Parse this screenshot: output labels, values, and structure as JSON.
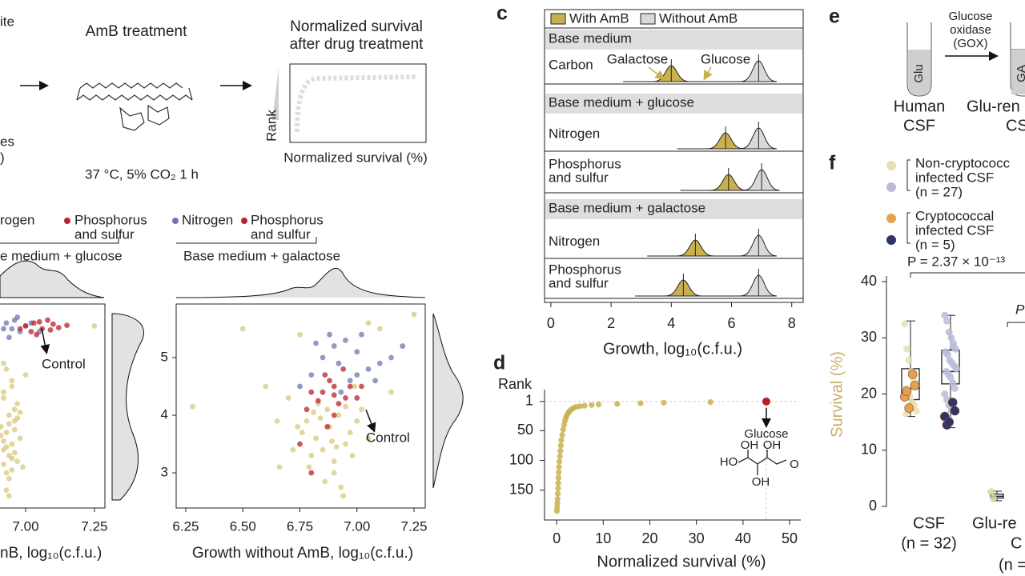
{
  "panel_labels": [
    "c",
    "d",
    "e",
    "f"
  ],
  "schematic": {
    "fragments": [
      "ite",
      "es",
      ")"
    ],
    "treatment": "AmB treatment",
    "conditions": "37 °C, 5% CO₂ 1 h",
    "readout": [
      "Normalized survival",
      "after drug treatment"
    ],
    "readout_y": "Rank",
    "readout_x": "Normalized survival (%)"
  },
  "panel_e": {
    "reagent": [
      "Glucose",
      "oxidase",
      "(GOX)"
    ],
    "tubes": [
      "Glu",
      "GA"
    ],
    "samples": [
      [
        "Human",
        "CSF"
      ],
      [
        "Glu-ren",
        "CS"
      ]
    ]
  },
  "chart_data": [
    {
      "type": "scatter",
      "x_label": "nB, log₁₀(c.f.u.)",
      "group_label": "e medium + glucose",
      "annotation": "Control",
      "xlim": [
        6.904,
        7.288
      ],
      "ylim": [
        2.39,
        5.93
      ],
      "xticks": [
        {
          "value": 7.0,
          "label": "7.00"
        },
        7.25
      ],
      "series": [
        {
          "color": "#d8c87a",
          "x": [
            6.93,
            6.95,
            6.92,
            6.97,
            6.94,
            6.96,
            6.91,
            6.93,
            6.98,
            6.95,
            6.92,
            6.94,
            6.97,
            6.99,
            6.93,
            6.96,
            6.92,
            6.95,
            6.94,
            6.91,
            6.97,
            6.93,
            6.96,
            6.98,
            6.92,
            6.95,
            6.94,
            6.93,
            6.96,
            6.92,
            7.0,
            6.95,
            7.25,
            6.94,
            6.92
          ],
          "values": [
            4.8,
            4.6,
            4.4,
            4.2,
            4.0,
            3.9,
            3.8,
            3.7,
            3.6,
            3.5,
            3.4,
            3.3,
            3.2,
            3.1,
            3.0,
            4.1,
            4.3,
            4.5,
            3.85,
            3.65,
            3.95,
            3.45,
            3.75,
            4.05,
            3.55,
            3.25,
            2.9,
            2.7,
            3.35,
            4.9,
            4.7,
            3.05,
            5.55,
            2.6,
            3.15
          ]
        },
        {
          "name_lines": [
            "rogen"
          ],
          "color": "#6b78b0",
          "x": [
            6.93,
            6.95,
            6.98,
            6.96,
            7.0,
            6.94,
            7.02,
            6.97,
            6.92,
            7.05
          ],
          "values": [
            5.6,
            5.5,
            5.45,
            5.65,
            5.55,
            5.35,
            5.6,
            5.7,
            5.5,
            5.45
          ]
        },
        {
          "name_lines": [
            "Phosphorus",
            "and sulfur"
          ],
          "color": "#b8232a",
          "x": [
            7.0,
            7.03,
            7.06,
            7.1,
            7.08,
            7.02,
            7.12,
            7.05,
            7.15,
            6.98,
            7.04,
            7.09
          ],
          "values": [
            5.55,
            5.6,
            5.5,
            5.58,
            5.65,
            5.45,
            5.52,
            5.62,
            5.56,
            5.5,
            5.4,
            5.48
          ]
        }
      ]
    },
    {
      "type": "scatter",
      "x_label": "Growth without AmB, log₁₀(c.f.u.)",
      "group_label": "Base medium + galactose",
      "annotation": "Control",
      "xlim": [
        6.208,
        7.299
      ],
      "ylim": [
        2.39,
        5.93
      ],
      "xticks": [
        6.25,
        {
          "value": 6.5,
          "label": "6.50"
        },
        6.75,
        {
          "value": 7.0,
          "label": "7.00"
        },
        7.25
      ],
      "yticks": [
        3,
        4,
        5
      ],
      "series": [
        {
          "color": "#d8c87a",
          "x": [
            6.78,
            6.82,
            6.85,
            6.9,
            6.88,
            6.8,
            6.95,
            6.92,
            6.87,
            6.83,
            6.76,
            6.97,
            7.0,
            7.02,
            6.9,
            6.86,
            6.93,
            6.79,
            6.72,
            6.74,
            6.98,
            7.05,
            6.84,
            6.89,
            6.91,
            6.81,
            6.95,
            6.7,
            6.65,
            6.6,
            6.5,
            6.28,
            6.66,
            7.25,
            7.1,
            7.05,
            6.75,
            7.15,
            6.99,
            6.94
          ],
          "values": [
            3.9,
            3.6,
            3.4,
            3.2,
            3.8,
            3.3,
            3.5,
            4.0,
            4.1,
            4.2,
            3.7,
            3.7,
            3.9,
            4.1,
            3.0,
            2.85,
            2.75,
            3.1,
            3.4,
            3.8,
            3.3,
            3.6,
            3.95,
            3.55,
            3.45,
            4.05,
            4.15,
            4.3,
            3.9,
            4.5,
            5.5,
            4.15,
            3.1,
            5.75,
            5.5,
            5.6,
            5.4,
            4.4,
            4.5,
            2.6
          ]
        },
        {
          "name_lines": [
            "Nitrogen"
          ],
          "color": "#6b78b0",
          "x": [
            6.85,
            6.9,
            6.95,
            7.0,
            7.05,
            7.1,
            6.8,
            6.75,
            6.92,
            7.02,
            6.97,
            6.88,
            7.15,
            7.08,
            6.82,
            7.2,
            6.93,
            7.0
          ],
          "values": [
            5.0,
            5.2,
            5.3,
            5.1,
            4.8,
            4.9,
            4.7,
            4.5,
            4.9,
            5.4,
            4.6,
            5.4,
            5.0,
            4.6,
            5.25,
            5.2,
            4.4,
            4.7
          ]
        },
        {
          "name_lines": [
            "Phosphorus",
            "and sulfur"
          ],
          "color": "#b8232a",
          "x": [
            6.85,
            6.9,
            6.95,
            6.88,
            6.92,
            6.8,
            7.0,
            6.97,
            6.86,
            6.9,
            6.83,
            6.94,
            7.02,
            6.78,
            6.75,
            6.8,
            6.87,
            6.9
          ],
          "values": [
            4.4,
            4.5,
            4.3,
            4.6,
            4.2,
            4.4,
            4.3,
            4.5,
            4.7,
            4.0,
            4.25,
            4.8,
            4.5,
            4.1,
            3.5,
            3.0,
            3.8,
            4.35
          ]
        }
      ]
    },
    {
      "type": "ridge",
      "x_label": "Growth, log₁₀(c.f.u.)",
      "xlim": [
        -0.21,
        8.38
      ],
      "xticks": [
        0,
        2,
        4,
        6,
        8
      ],
      "series": [
        {
          "name": "With AmB",
          "color": "#c9b04e"
        },
        {
          "name": "Without AmB",
          "color": "#d9d9d9"
        }
      ],
      "annotations": [
        "Galactose",
        "Glucose"
      ],
      "groups": [
        {
          "title": "Base medium",
          "rows": [
            {
              "label_lines": [
                "Carbon"
              ],
              "values": [
                4.0,
                6.9
              ]
            }
          ]
        },
        {
          "title": "Base medium + glucose",
          "rows": [
            {
              "label_lines": [
                "Nitrogen"
              ],
              "values": [
                5.8,
                6.9
              ]
            },
            {
              "label_lines": [
                "Phosphorus",
                "and sulfur"
              ],
              "values": [
                5.9,
                7.0
              ]
            }
          ]
        },
        {
          "title": "Base medium + galactose",
          "rows": [
            {
              "label_lines": [
                "Nitrogen"
              ],
              "values": [
                4.8,
                6.9
              ]
            },
            {
              "label_lines": [
                "Phosphorus",
                "and sulfur"
              ],
              "values": [
                4.4,
                6.9
              ]
            }
          ]
        }
      ]
    },
    {
      "type": "rank",
      "y_label": "Rank",
      "x_label": "Normalized survival (%)",
      "annotation": "Glucose",
      "structure_atoms": [
        "HO",
        "OH",
        "OH",
        "O",
        "OH"
      ],
      "xlim": [
        -2.6,
        52.4
      ],
      "ylim": [
        -19,
        200
      ],
      "y_inverted": true,
      "xticks": [
        0,
        10,
        20,
        30,
        40,
        50
      ],
      "yticks": [
        1,
        50,
        100,
        150
      ],
      "series": [
        {
          "color": "#c9b04e",
          "x": [
            33,
            23,
            18,
            13,
            9,
            7.5,
            6,
            5,
            4.2,
            3.6,
            3.2,
            2.8,
            2.5,
            2.2,
            2.0,
            1.8,
            1.6,
            1.4,
            1.2,
            1.0,
            0.9,
            0.8,
            0.7,
            0.6,
            0.5,
            0.45,
            0.4,
            0.35,
            0.3,
            0.25,
            0.2,
            0.15,
            0.1,
            0.05
          ],
          "values": [
            2,
            3,
            4,
            5,
            6,
            7,
            8,
            9,
            10,
            12,
            14,
            17,
            20,
            24,
            28,
            33,
            40,
            48,
            57,
            66,
            75,
            84,
            93,
            102,
            111,
            120,
            129,
            138,
            147,
            156,
            165,
            172,
            179,
            185
          ]
        },
        {
          "color": "#b81e22",
          "x": [
            45
          ],
          "values": [
            1
          ]
        }
      ]
    },
    {
      "type": "box",
      "y_label": "Survival (%)",
      "ylim": [
        0,
        40
      ],
      "yticks": [
        0,
        10,
        20,
        30,
        40
      ],
      "category_lines": [
        [
          "CSF",
          "(n = 32)"
        ],
        [
          "Glu-re",
          "C",
          "(n ="
        ]
      ],
      "annotations": [
        "P = 2.37 × 10⁻¹³",
        "P"
      ],
      "boxes": [
        {
          "min": 16,
          "q1": 19,
          "median": 21,
          "q3": 24.5,
          "max": 33
        },
        {
          "min": 14,
          "q1": 21.8,
          "median": 24,
          "q3": 27.8,
          "max": 34
        },
        {
          "min": 1.0,
          "q1": 1.5,
          "median": 1.8,
          "q3": 2.2,
          "max": 2.7
        }
      ],
      "series": [
        {
          "name_lines": [
            "Non-cryptococc",
            "infected CSF",
            "(n = 27)"
          ],
          "colors": [
            "#e6e0ae",
            "#b9bdd8",
            "#ddd59c"
          ],
          "values": [
            [
              32.5,
              28,
              26,
              24,
              22.5,
              22,
              21,
              20,
              19.5,
              18.5,
              18,
              17,
              16.5
            ],
            [
              34,
              33,
              31,
              30,
              29,
              28,
              27.5,
              27,
              26,
              25.5,
              25,
              24.5,
              24,
              23.5,
              23,
              22,
              21,
              20,
              19,
              18,
              17,
              28.5
            ],
            [
              2.6,
              1.4
            ]
          ]
        },
        {
          "name_lines": [
            "Cryptococcal",
            "infected CSF",
            "(n = 5)"
          ],
          "colors": [
            "#e3a24f",
            "#2f3568"
          ],
          "values": [
            [
              23.5,
              21.5,
              19.5,
              20.5,
              17.5
            ],
            [
              18.5,
              17,
              16,
              14.5,
              15
            ]
          ]
        }
      ]
    }
  ]
}
